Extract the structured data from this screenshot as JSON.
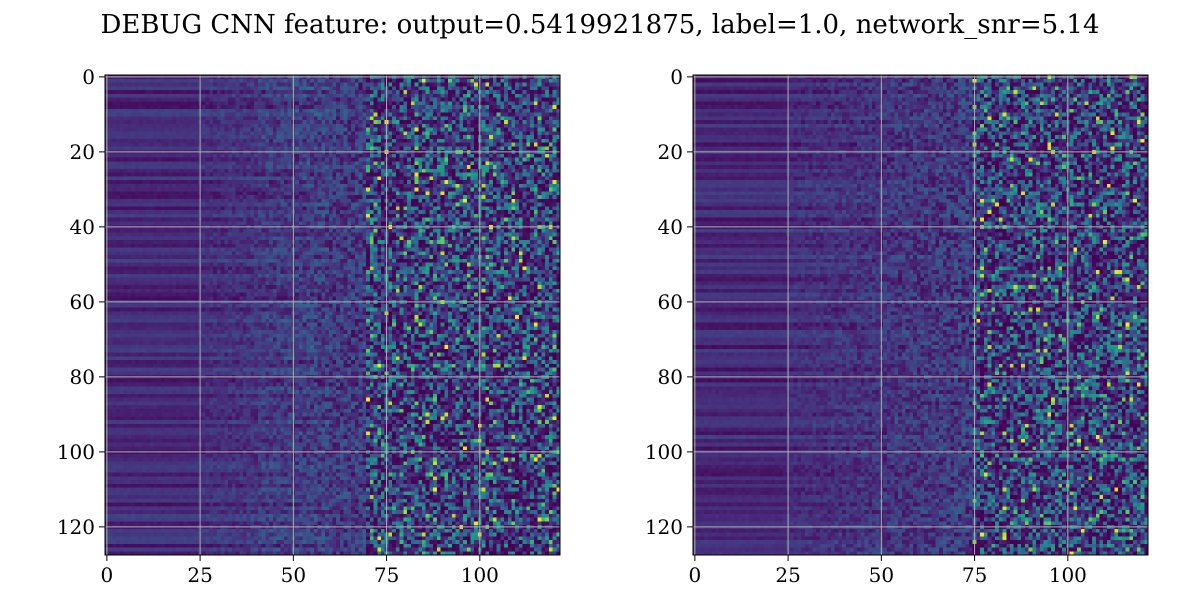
{
  "figure": {
    "title": "DEBUG CNN feature: output=0.5419921875, label=1.0, network_snr=5.14"
  },
  "colormap": {
    "name": "viridis",
    "stops": [
      "#440154",
      "#472d7b",
      "#3b528b",
      "#2c728e",
      "#21918c",
      "#28ae80",
      "#5ec962",
      "#addc30",
      "#fde725"
    ]
  },
  "chart_data": [
    {
      "type": "heatmap",
      "title": "",
      "xlabel": "",
      "ylabel": "",
      "xlim": [
        -0.5,
        121.5
      ],
      "ylim": [
        127.5,
        -0.5
      ],
      "x_ticks": [
        0,
        25,
        50,
        75,
        100
      ],
      "y_ticks": [
        0,
        20,
        40,
        60,
        80,
        100,
        120
      ],
      "grid": true,
      "grid_color": "#b0b0b0",
      "shape": [
        128,
        122
      ],
      "structure": "dark horizontal bands for columns 0-25, gradually brighter toward column 45-60, sparse bright noisy pixels from column 70 to 121",
      "seed": 7
    },
    {
      "type": "heatmap",
      "title": "",
      "xlabel": "",
      "ylabel": "",
      "xlim": [
        -0.5,
        121.5
      ],
      "ylim": [
        127.5,
        -0.5
      ],
      "x_ticks": [
        0,
        25,
        50,
        75,
        100
      ],
      "y_ticks": [
        0,
        20,
        40,
        60,
        80,
        100,
        120
      ],
      "grid": true,
      "grid_color": "#b0b0b0",
      "shape": [
        128,
        122
      ],
      "structure": "dark horizontal bands for columns 0-25, dim noise 25-70, sparse bright noisy pixels from column 75 to 121",
      "seed": 19
    }
  ]
}
